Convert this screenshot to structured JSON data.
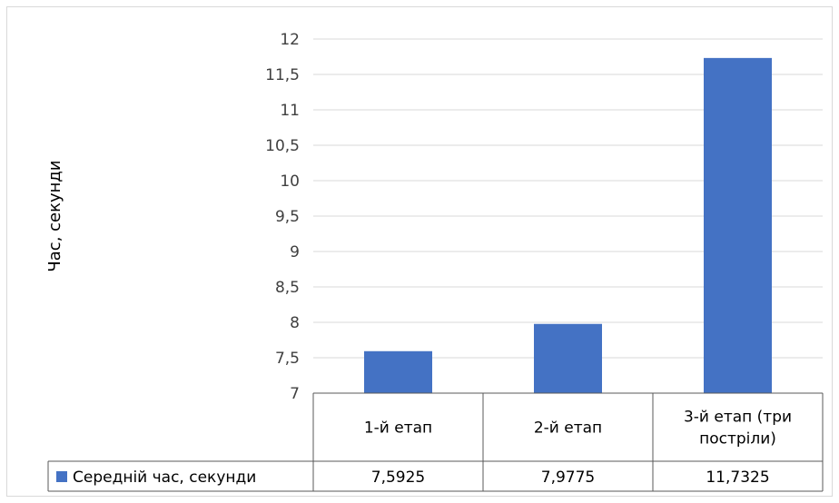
{
  "chart_data": {
    "type": "bar",
    "ylabel": "Час, секунди",
    "ylim": [
      7,
      12
    ],
    "y_ticks": [
      "7",
      "7,5",
      "8",
      "8,5",
      "9",
      "9,5",
      "10",
      "10,5",
      "11",
      "11,5",
      "12"
    ],
    "categories": [
      [
        "1-й етап"
      ],
      [
        "2-й етап"
      ],
      [
        "3-й етап (три",
        "постріли)"
      ]
    ],
    "series": [
      {
        "name": "Середній час, секунди",
        "values": [
          7.5925,
          7.9775,
          11.7325
        ],
        "value_labels": [
          "7,5925",
          "7,9775",
          "11,7325"
        ],
        "color": "#4472C4"
      }
    ],
    "grid": true,
    "legend": "data-table",
    "colors": {
      "gridline": "#d9d9d9",
      "axis": "#595959",
      "frame": "#d9d9d9"
    }
  }
}
